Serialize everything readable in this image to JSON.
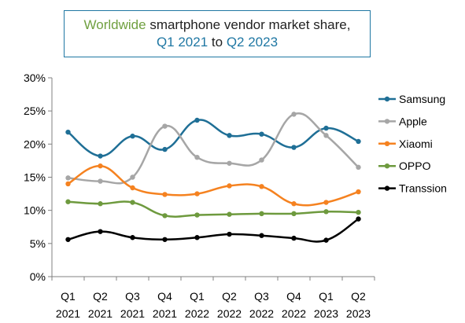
{
  "title": {
    "part1": "Worldwide",
    "part2": " smartphone vendor market share,",
    "part3": "Q1 2021",
    "part4": " to ",
    "part5": "Q2 2023"
  },
  "colors": {
    "title_green": "#70a040",
    "title_blue": "#1f77a3"
  },
  "chart_data": {
    "type": "line",
    "title": "Worldwide smartphone vendor market share, Q1 2021 to Q2 2023",
    "categories": [
      [
        "Q1",
        "2021"
      ],
      [
        "Q2",
        "2021"
      ],
      [
        "Q3",
        "2021"
      ],
      [
        "Q4",
        "2021"
      ],
      [
        "Q1",
        "2022"
      ],
      [
        "Q2",
        "2022"
      ],
      [
        "Q3",
        "2022"
      ],
      [
        "Q4",
        "2022"
      ],
      [
        "Q1",
        "2023"
      ],
      [
        "Q2",
        "2023"
      ]
    ],
    "y_ticks": [
      "0%",
      "5%",
      "10%",
      "15%",
      "20%",
      "25%",
      "30%"
    ],
    "ylim": [
      0,
      30
    ],
    "grid": false,
    "legend_position": "right",
    "series": [
      {
        "name": "Samsung",
        "color": "#1f6f96",
        "values": [
          21.8,
          18.2,
          21.2,
          19.2,
          23.6,
          21.3,
          21.5,
          19.5,
          22.4,
          20.4
        ]
      },
      {
        "name": "Apple",
        "color": "#a6a6a6",
        "values": [
          14.9,
          14.4,
          15.0,
          22.7,
          18.0,
          17.1,
          17.6,
          24.5,
          21.3,
          16.5
        ]
      },
      {
        "name": "Xiaomi",
        "color": "#f58220",
        "values": [
          14.0,
          16.7,
          13.4,
          12.4,
          12.5,
          13.7,
          13.6,
          11.0,
          11.2,
          12.8
        ]
      },
      {
        "name": "OPPO",
        "color": "#6e9a3e",
        "values": [
          11.3,
          11.0,
          11.2,
          9.2,
          9.3,
          9.4,
          9.5,
          9.5,
          9.8,
          9.7
        ]
      },
      {
        "name": "Transsion",
        "color": "#000000",
        "values": [
          5.6,
          6.8,
          5.9,
          5.6,
          5.9,
          6.4,
          6.2,
          5.8,
          5.5,
          8.7
        ]
      }
    ]
  }
}
